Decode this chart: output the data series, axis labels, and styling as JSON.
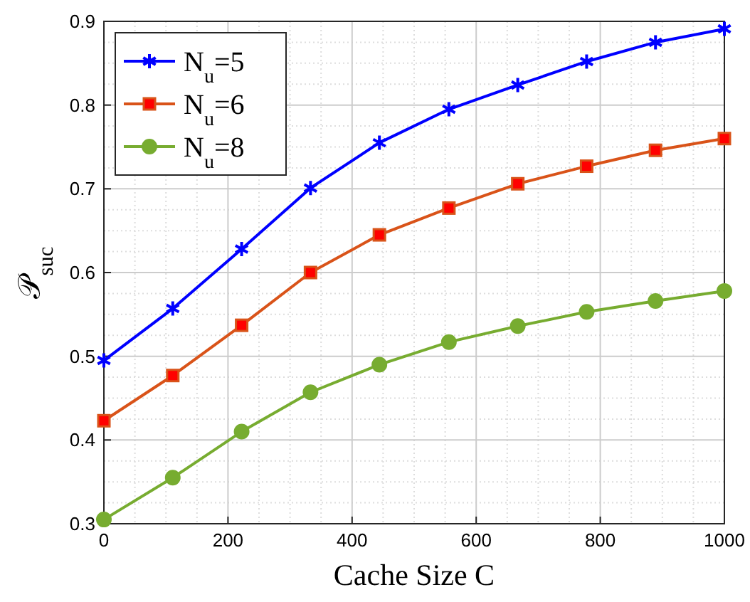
{
  "chart_data": {
    "type": "line",
    "xlabel": "Cache Size C",
    "ylabel": "𝒫$_{suc}$",
    "x": [
      0,
      111,
      222,
      333,
      444,
      556,
      667,
      778,
      889,
      1000
    ],
    "xlim": [
      0,
      1000
    ],
    "xticks": [
      0,
      200,
      400,
      600,
      800,
      1000
    ],
    "ylim": [
      0.3,
      0.9
    ],
    "yticks": [
      0.3,
      0.4,
      0.5,
      0.6,
      0.7,
      0.8,
      0.9
    ],
    "grid": true,
    "legend": "top left",
    "line_style": "solid",
    "series": [
      {
        "name": "N$_{u}$=5",
        "color": "#0000ff",
        "marker": "cross",
        "values": [
          0.495,
          0.557,
          0.628,
          0.701,
          0.755,
          0.795,
          0.824,
          0.852,
          0.875,
          0.891
        ]
      },
      {
        "name": "N$_{u}$=6",
        "color": "#d95319",
        "marker": "square",
        "values": [
          0.423,
          0.477,
          0.537,
          0.6,
          0.645,
          0.677,
          0.706,
          0.727,
          0.746,
          0.76
        ]
      },
      {
        "name": "N$_{u}$=8",
        "color": "#77ac30",
        "marker": "circle",
        "values": [
          0.305,
          0.355,
          0.41,
          0.457,
          0.49,
          0.517,
          0.536,
          0.553,
          0.566,
          0.578
        ]
      }
    ]
  }
}
